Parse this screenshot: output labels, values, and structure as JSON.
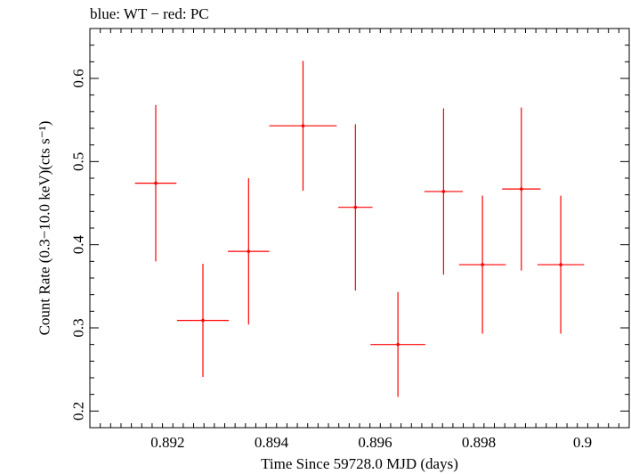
{
  "chart_data": {
    "type": "scatter",
    "title": "blue: WT − red: PC",
    "xlabel": "Time Since 59728.0 MJD (days)",
    "ylabel": "Count Rate (0.3−10.0 keV)(cts s⁻¹)",
    "xlim": [
      0.8905,
      0.9009
    ],
    "ylim": [
      0.18,
      0.66
    ],
    "x_ticks": [
      0.892,
      0.894,
      0.896,
      0.898,
      0.9
    ],
    "x_tick_labels": [
      "0.892",
      "0.894",
      "0.896",
      "0.898",
      "0.9"
    ],
    "y_ticks": [
      0.2,
      0.3,
      0.4,
      0.5,
      0.6
    ],
    "y_tick_labels": [
      "0.2",
      "0.3",
      "0.4",
      "0.5",
      "0.6"
    ],
    "grid": false,
    "series": [
      {
        "name": "PC",
        "color": "#ff0000",
        "points": [
          {
            "x": 0.89177,
            "xerr": 0.0004,
            "y": 0.474,
            "yerr": 0.094
          },
          {
            "x": 0.89268,
            "xerr": 0.0005,
            "y": 0.309,
            "yerr": 0.068
          },
          {
            "x": 0.89356,
            "xerr": 0.0004,
            "y": 0.392,
            "yerr": 0.088
          },
          {
            "x": 0.89461,
            "xerr": 0.00065,
            "y": 0.543,
            "yerr": 0.078
          },
          {
            "x": 0.89562,
            "xerr": 0.00033,
            "y": 0.445,
            "yerr": 0.1
          },
          {
            "x": 0.89644,
            "xerr": 0.00053,
            "y": 0.28,
            "yerr": 0.063
          },
          {
            "x": 0.89732,
            "xerr": 0.00037,
            "y": 0.464,
            "yerr": 0.1
          },
          {
            "x": 0.89807,
            "xerr": 0.00045,
            "y": 0.376,
            "yerr": 0.083
          },
          {
            "x": 0.89882,
            "xerr": 0.00037,
            "y": 0.467,
            "yerr": 0.098
          },
          {
            "x": 0.89958,
            "xerr": 0.00045,
            "y": 0.376,
            "yerr": 0.083
          }
        ]
      }
    ]
  }
}
